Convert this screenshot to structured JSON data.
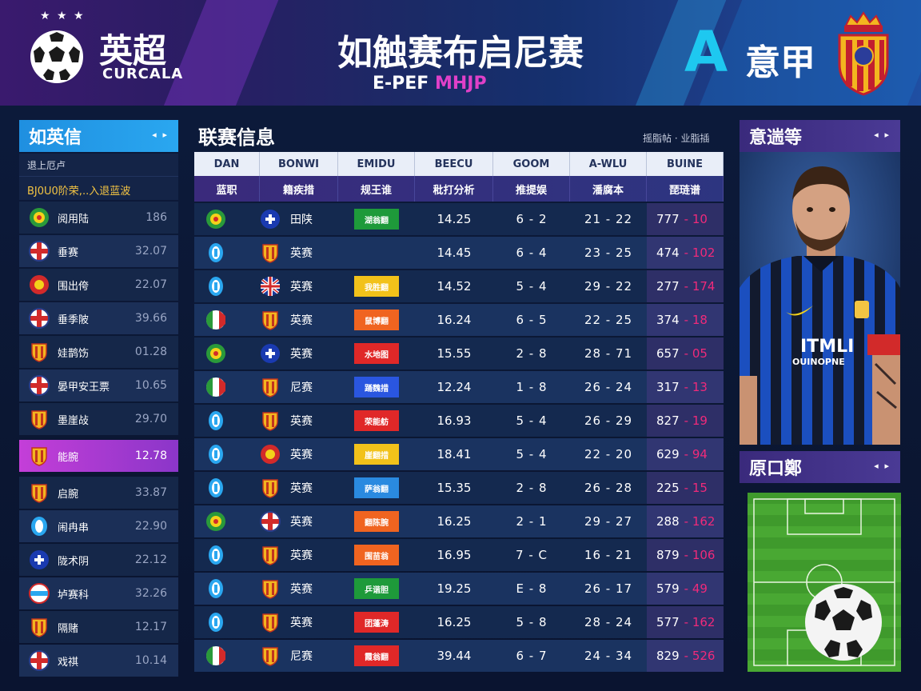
{
  "header": {
    "stars": "★ ★ ★",
    "left_league": "英超",
    "left_sub": "CURCALA",
    "title": "如触赛布启尼赛",
    "subtitle_main": "E-PEF ",
    "subtitle_accent": "MHJP",
    "right_logo": "A",
    "right_league": "意甲"
  },
  "left_panel": {
    "title": "如英信",
    "arrows": "◂ ▸",
    "info1": "退上厄卢",
    "info2": "BJ0U0阶荣,..入退蓝波",
    "rows": [
      {
        "name": "阅用陆",
        "value": "186",
        "icon": "green-crest-icon",
        "highlight": false
      },
      {
        "name": "垂赛",
        "value": "32.07",
        "icon": "england-flag-icon",
        "highlight": false
      },
      {
        "name": "围出侉",
        "value": "22.07",
        "icon": "red-crest-icon",
        "highlight": false
      },
      {
        "name": "垂季陂",
        "value": "39.66",
        "icon": "england-flag-icon",
        "highlight": false
      },
      {
        "name": "娃鹊饬",
        "value": "01.28",
        "icon": "orange-shield-icon",
        "highlight": false
      },
      {
        "name": "晏甲安王票",
        "value": "10.65",
        "icon": "england-flag-icon",
        "highlight": false
      },
      {
        "name": "墨崖敁",
        "value": "29.70",
        "icon": "orange-shield-icon",
        "highlight": false
      },
      {
        "name": "能腕",
        "value": "12.78",
        "icon": "orange-shield-icon",
        "highlight": true
      },
      {
        "name": "启腕",
        "value": "33.87",
        "icon": "orange-shield-icon",
        "highlight": false
      },
      {
        "name": "闹冉串",
        "value": "22.90",
        "icon": "blue-crest-icon",
        "highlight": false
      },
      {
        "name": "陇术阴",
        "value": "22.12",
        "icon": "blue-cross-icon",
        "highlight": false
      },
      {
        "name": "垆赛科",
        "value": "32.26",
        "icon": "white-stripe-icon",
        "highlight": false
      },
      {
        "name": "隔赌",
        "value": "12.17",
        "icon": "orange-shield-icon",
        "highlight": false
      },
      {
        "name": "戏祺",
        "value": "10.14",
        "icon": "england-flag-icon",
        "highlight": false
      }
    ]
  },
  "center": {
    "title": "联赛信息",
    "meta": "摇脂帖 · 业脂插",
    "headers_top": [
      "DAN",
      "BONWI",
      "EMIDU",
      "BEECU",
      "GOOM",
      "A-WLU",
      "BUINE"
    ],
    "headers_cn": [
      "蓝职",
      "籍疾措",
      "规王谁",
      "秕打分析",
      "推提娱",
      "潘腐本",
      "琵琏谱"
    ],
    "rows": [
      {
        "team": "田陕",
        "badge_color": "#1e9a3a",
        "badge": "湖翁翻",
        "time": "14.25",
        "score": "6 - 2",
        "range": "21 - 22",
        "pts": "777",
        "chg": "- 10"
      },
      {
        "team": "英赛",
        "badge_color": "",
        "badge": "",
        "time": "14.45",
        "score": "6 - 4",
        "range": "23 - 25",
        "pts": "474",
        "chg": "- 102"
      },
      {
        "team": "英赛",
        "badge_color": "#f2c21a",
        "badge": "我胜翻",
        "time": "14.52",
        "score": "5 - 4",
        "range": "29 - 22",
        "pts": "277",
        "chg": "- 174"
      },
      {
        "team": "英赛",
        "badge_color": "#f06420",
        "badge": "鼠博翻",
        "time": "16.24",
        "score": "6 - 5",
        "range": "22 - 25",
        "pts": "374",
        "chg": "- 18"
      },
      {
        "team": "英赛",
        "badge_color": "#e02828",
        "badge": "水地图",
        "time": "15.55",
        "score": "2 - 8",
        "range": "28 - 71",
        "pts": "657",
        "chg": "- 05"
      },
      {
        "team": "尼赛",
        "badge_color": "#2a56e0",
        "badge": "踊魏措",
        "time": "12.24",
        "score": "1 - 8",
        "range": "26 - 24",
        "pts": "317",
        "chg": "- 13"
      },
      {
        "team": "英赛",
        "badge_color": "#e02828",
        "badge": "荣能舫",
        "time": "16.93",
        "score": "5 - 4",
        "range": "26 - 29",
        "pts": "827",
        "chg": "- 19"
      },
      {
        "team": "英赛",
        "badge_color": "#f2c21a",
        "badge": "崖翻措",
        "time": "18.41",
        "score": "5 - 4",
        "range": "22 - 20",
        "pts": "629",
        "chg": "- 94"
      },
      {
        "team": "英赛",
        "badge_color": "#2a8ae0",
        "badge": "萨翁翻",
        "time": "15.35",
        "score": "2 - 8",
        "range": "26 - 28",
        "pts": "225",
        "chg": "- 15"
      },
      {
        "team": "英赛",
        "badge_color": "#f06420",
        "badge": "翻陈腕",
        "time": "16.25",
        "score": "2 - 1",
        "range": "29 - 27",
        "pts": "288",
        "chg": "- 162"
      },
      {
        "team": "英赛",
        "badge_color": "#f06420",
        "badge": "围苗翁",
        "time": "16.95",
        "score": "7 - C",
        "range": "16 - 21",
        "pts": "879",
        "chg": "- 106"
      },
      {
        "team": "英赛",
        "badge_color": "#1e9a3a",
        "badge": "乒谐胆",
        "time": "19.25",
        "score": "E - 8",
        "range": "26 - 17",
        "pts": "579",
        "chg": "- 49"
      },
      {
        "team": "英赛",
        "badge_color": "#e02828",
        "badge": "团蓬涛",
        "time": "16.25",
        "score": "5 - 8",
        "range": "28 - 24",
        "pts": "577",
        "chg": "- 162"
      },
      {
        "team": "尼赛",
        "badge_color": "#e02828",
        "badge": "霞翁翻",
        "time": "39.44",
        "score": "6 - 7",
        "range": "24 - 34",
        "pts": "829",
        "chg": "- 526"
      }
    ]
  },
  "right_panel": {
    "title1": "意遄等",
    "arrows": "◂ ▸",
    "jersey_text1": "ITMLI",
    "jersey_text2": "OUINOPNE",
    "title2": "原口鄭"
  },
  "colors": {
    "accent_blue": "#2aa7f0",
    "accent_purple": "#c43ed8",
    "negative": "#f02a7a"
  }
}
